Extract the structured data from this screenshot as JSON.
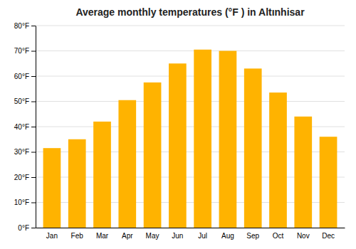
{
  "chart_data": {
    "type": "bar",
    "title": "Average monthly temperatures (°F ) in Altınhisar",
    "categories": [
      "Jan",
      "Feb",
      "Mar",
      "Apr",
      "May",
      "Jun",
      "Jul",
      "Aug",
      "Sep",
      "Oct",
      "Nov",
      "Dec"
    ],
    "values": [
      31.5,
      35,
      42,
      50.5,
      57.5,
      65,
      70.5,
      70,
      63,
      53.5,
      44,
      36
    ],
    "color": "#FFB300",
    "ylim": [
      0,
      80
    ],
    "yticks": [
      {
        "value": 0,
        "label": "0°F"
      },
      {
        "value": 10,
        "label": "10°F"
      },
      {
        "value": 20,
        "label": "20°F"
      },
      {
        "value": 30,
        "label": "30°F"
      },
      {
        "value": 40,
        "label": "40°F"
      },
      {
        "value": 50,
        "label": "50°F"
      },
      {
        "value": 60,
        "label": "60°F"
      },
      {
        "value": 70,
        "label": "70°F"
      },
      {
        "value": 80,
        "label": "80°F"
      }
    ],
    "grid": true
  }
}
